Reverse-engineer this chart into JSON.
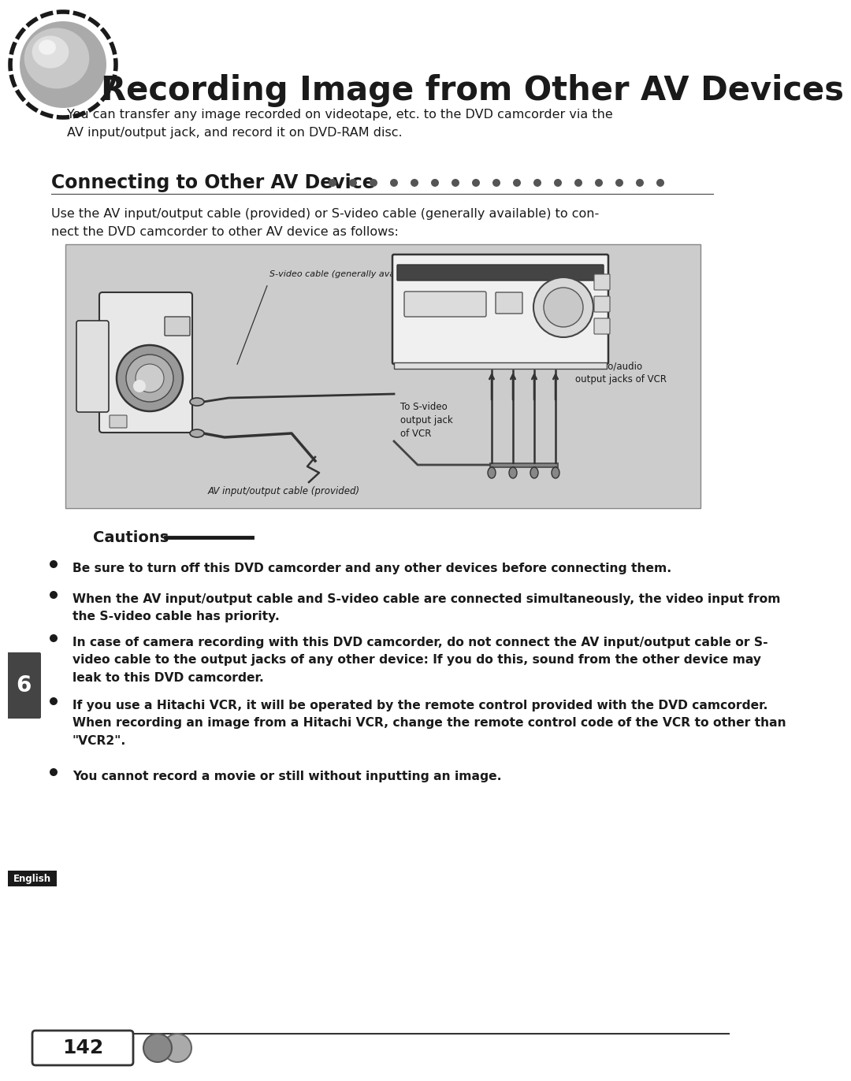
{
  "title": "Recording Image from Other AV Devices",
  "intro_text": "You can transfer any image recorded on videotape, etc. to the DVD camcorder via the\nAV input/output jack, and record it on DVD-RAM disc.",
  "section_title": "Connecting to Other AV Device",
  "section_dots": 17,
  "section_intro": "Use the AV input/output cable (provided) or S-video cable (generally available) to con-\nnect the DVD camcorder to other AV device as follows:",
  "cautions_title": "Cautions",
  "bullets": [
    "Be sure to turn off this DVD camcorder and any other devices before connecting them.",
    "When the AV input/output cable and S-video cable are connected simultaneously, the video input from\nthe S-video cable has priority.",
    "In case of camera recording with this DVD camcorder, do not connect the AV input/output cable or S-\nvideo cable to the output jacks of any other device: If you do this, sound from the other device may\nleak to this DVD camcorder.",
    "If you use a Hitachi VCR, it will be operated by the remote control provided with the DVD camcorder.\nWhen recording an image from a Hitachi VCR, change the remote control code of the VCR to other than\n\"VCR2\".",
    "You cannot record a movie or still without inputting an image."
  ],
  "diagram_label_svideo": "S-video cable (generally avairable)",
  "diagram_label_av": "AV input/output cable (provided)",
  "diagram_label_to_svideo": "To S-video\noutput jack\nof VCR",
  "diagram_label_to_video": "To video/audio\noutput jacks of VCR",
  "page_number": "142",
  "english_label": "English",
  "section_number": "6",
  "bg_color": "#ffffff",
  "diagram_bg": "#cccccc",
  "title_color": "#1a1a1a",
  "text_color": "#1a1a1a",
  "section_label_bg": "#444444"
}
